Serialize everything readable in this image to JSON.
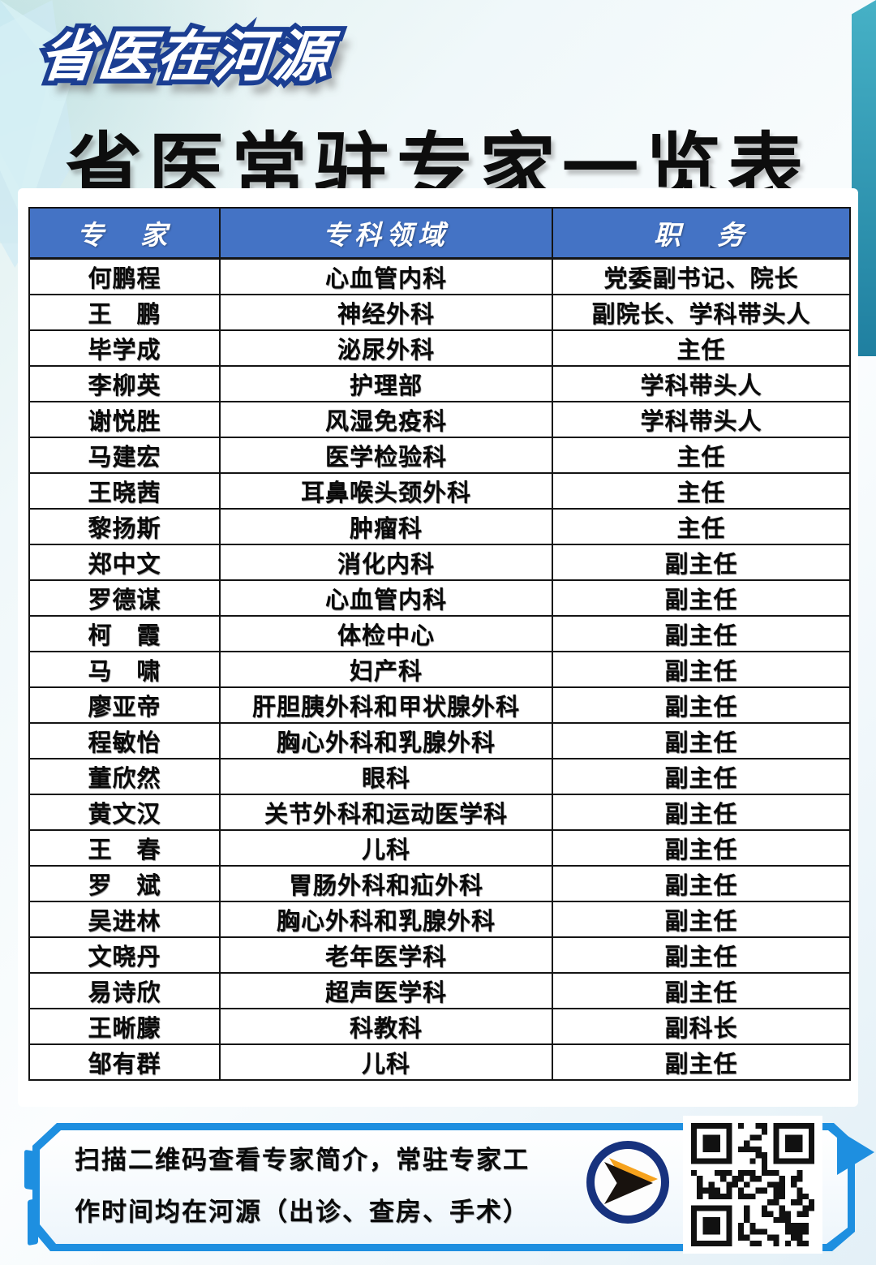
{
  "logo": {
    "text": "省医在河源"
  },
  "title": "省医常驻专家一览表",
  "table": {
    "headers": [
      "专　家",
      "专科领域",
      "职　务"
    ],
    "rows": [
      [
        "何鹏程",
        "心血管内科",
        "党委副书记、院长"
      ],
      [
        "王　鹏",
        "神经外科",
        "副院长、学科带头人"
      ],
      [
        "毕学成",
        "泌尿外科",
        "主任"
      ],
      [
        "李柳英",
        "护理部",
        "学科带头人"
      ],
      [
        "谢悦胜",
        "风湿免疫科",
        "学科带头人"
      ],
      [
        "马建宏",
        "医学检验科",
        "主任"
      ],
      [
        "王晓茜",
        "耳鼻喉头颈外科",
        "主任"
      ],
      [
        "黎扬斯",
        "肿瘤科",
        "主任"
      ],
      [
        "郑中文",
        "消化内科",
        "副主任"
      ],
      [
        "罗德谋",
        "心血管内科",
        "副主任"
      ],
      [
        "柯　霞",
        "体检中心",
        "副主任"
      ],
      [
        "马　啸",
        "妇产科",
        "副主任"
      ],
      [
        "廖亚帝",
        "肝胆胰外科和甲状腺外科",
        "副主任"
      ],
      [
        "程敏怡",
        "胸心外科和乳腺外科",
        "副主任"
      ],
      [
        "董欣然",
        "眼科",
        "副主任"
      ],
      [
        "黄文汉",
        "关节外科和运动医学科",
        "副主任"
      ],
      [
        "王　春",
        "儿科",
        "副主任"
      ],
      [
        "罗　斌",
        "胃肠外科和疝外科",
        "副主任"
      ],
      [
        "吴进林",
        "胸心外科和乳腺外科",
        "副主任"
      ],
      [
        "文晓丹",
        "老年医学科",
        "副主任"
      ],
      [
        "易诗欣",
        "超声医学科",
        "副主任"
      ],
      [
        "王晰朦",
        "科教科",
        "副科长"
      ],
      [
        "邹有群",
        "儿科",
        "副主任"
      ]
    ]
  },
  "footer": {
    "line1": "扫描二维码查看专家简介，常驻专家工",
    "line2": "作时间均在河源（出诊、查房、手术）",
    "arrow_icon": "arrow-right-icon",
    "qr_icon": "qr-code"
  },
  "colors": {
    "header_blue": "#4473c5",
    "frame_blue": "#1e8fe0",
    "logo_navy": "#1b3e92",
    "badge_navy": "#17327e",
    "dart_orange": "#f6a21d",
    "text_black": "#0a0a0a"
  }
}
